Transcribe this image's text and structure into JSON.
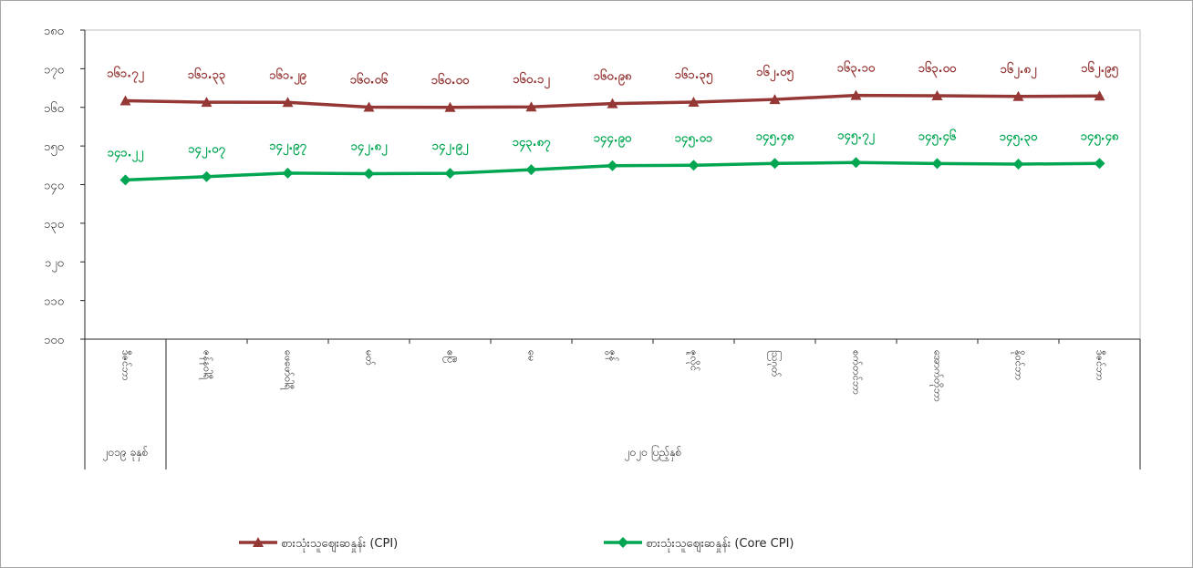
{
  "chart_data": {
    "type": "line",
    "title": "",
    "xlabel": "",
    "ylabel": "",
    "ylim": [
      100,
      180
    ],
    "y_ticks": [
      "၁၀၀",
      "၁၁၀",
      "၁၂၀",
      "၁၃၀",
      "၁၄၀",
      "၁၅၀",
      "၁၆၀",
      "၁၇၀",
      "၁၈၀"
    ],
    "grid": false,
    "legend_position": "bottom",
    "categories": [
      "ဒီဇင်ဘာ",
      "ဇန်နဝါရီ",
      "ဖေဖော်ဝါရီ",
      "မတ်",
      "ဧပြီ",
      "မေ",
      "ဇွန်",
      "ဇူလိုင်",
      "ဩဂုတ်",
      "စက်တင်ဘာ",
      "အောက်တိုဘာ",
      "နိုဝင်ဘာ",
      "ဒီဇင်ဘာ"
    ],
    "groups": [
      {
        "label": "၂၀၁၉ ခုနှစ်",
        "span": 1
      },
      {
        "label": "၂၀၂၀ ပြည့်နှစ်",
        "span": 12
      }
    ],
    "series": [
      {
        "name": "စားသုံးသူဈေးဆနှုန်း (CPI)",
        "color": "#953735",
        "marker": "triangle",
        "values": [
          161.72,
          161.33,
          161.29,
          160.06,
          160.0,
          160.12,
          160.98,
          161.35,
          162.05,
          163.1,
          163.0,
          162.82,
          162.95
        ],
        "labels": [
          "၁၆၁.၇၂",
          "၁၆၁.၃၃",
          "၁၆၁.၂၉",
          "၁၆၀.၀၆",
          "၁၆၀.၀၀",
          "၁၆၀.၁၂",
          "၁၆၀.၉၈",
          "၁၆၁.၃၅",
          "၁၆၂.၀၅",
          "၁၆၃.၁၀",
          "၁၆၃.၀၀",
          "၁၆၂.၈၂",
          "၁၆၂.၉၅"
        ]
      },
      {
        "name": "စားသုံးသူဈေးဆနှုန်း (Core CPI)",
        "color": "#00A651",
        "marker": "diamond",
        "values": [
          141.22,
          142.07,
          142.97,
          142.82,
          142.92,
          143.87,
          144.9,
          145.01,
          145.48,
          145.72,
          145.46,
          145.3,
          145.48
        ],
        "labels": [
          "၁၄၁.၂၂",
          "၁၄၂.၀၇",
          "၁၄၂.၉၇",
          "၁၄၂.၈၂",
          "၁၄၂.၉၂",
          "၁၄၃.၈၇",
          "၁၄၄.၉၀",
          "၁၄၅.၀၁",
          "၁၄၅.၄၈",
          "၁၄၅.၇၂",
          "၁၄၅.၄၆",
          "၁၄၅.၃၀",
          "၁၄၅.၄၈"
        ]
      }
    ]
  }
}
